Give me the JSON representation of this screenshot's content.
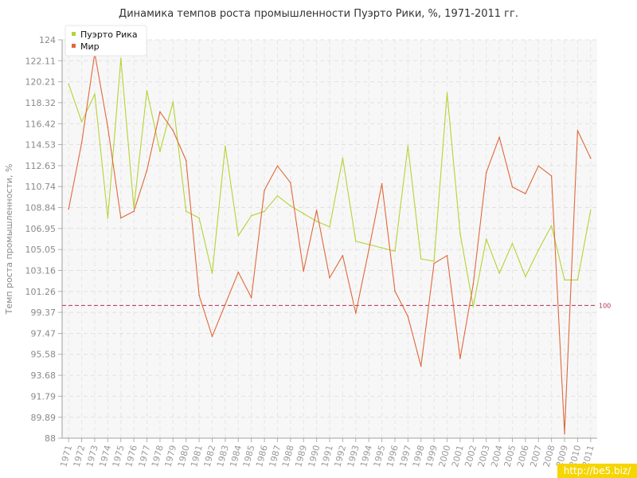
{
  "chart_data": {
    "type": "line",
    "title": "Динамика темпов роста промышленности Пуэрто Рики, %, 1971-2011 гг.",
    "ylabel": "Темп роста промышленности, %",
    "xlabel": "",
    "ylim": [
      88,
      124
    ],
    "y_ticks": [
      "124",
      "122.11",
      "120.21",
      "118.32",
      "116.42",
      "114.53",
      "112.63",
      "110.74",
      "108.84",
      "106.95",
      "105.05",
      "103.16",
      "101.26",
      "99.37",
      "97.47",
      "95.58",
      "93.68",
      "91.79",
      "89.89",
      "88"
    ],
    "categories": [
      "1971",
      "1972",
      "1973",
      "1974",
      "1975",
      "1976",
      "1977",
      "1978",
      "1979",
      "1980",
      "1981",
      "1982",
      "1983",
      "1984",
      "1985",
      "1986",
      "1987",
      "1988",
      "1989",
      "1990",
      "1991",
      "1992",
      "1993",
      "1994",
      "1995",
      "1996",
      "1997",
      "1998",
      "1999",
      "2000",
      "2001",
      "2002",
      "2003",
      "2004",
      "2005",
      "2006",
      "2007",
      "2008",
      "2009",
      "2010",
      "2011"
    ],
    "series": [
      {
        "name": "Пуэрто Рика",
        "color": "#b5d334",
        "values": [
          120.0,
          116.6,
          119.1,
          107.9,
          122.3,
          108.8,
          119.4,
          113.9,
          118.4,
          108.5,
          107.9,
          102.9,
          114.4,
          106.3,
          108.1,
          108.5,
          109.9,
          109.0,
          108.3,
          107.6,
          107.1,
          113.3,
          105.8,
          105.5,
          105.2,
          104.9,
          114.4,
          104.2,
          104.0,
          119.2,
          106.5,
          99.9,
          106.0,
          102.9,
          105.6,
          102.6,
          105.0,
          107.2,
          102.3,
          102.3,
          108.6
        ],
        "annotation": "Пуэрто Рика"
      },
      {
        "name": "Мир",
        "color": "#e0683a",
        "values": [
          108.7,
          114.7,
          122.8,
          116.1,
          107.9,
          108.5,
          112.2,
          117.5,
          115.8,
          113.1,
          100.9,
          97.2,
          100.1,
          103.0,
          100.7,
          110.4,
          112.6,
          111.1,
          103.1,
          108.6,
          102.5,
          104.5,
          99.3,
          105.0,
          111.0,
          101.3,
          99.0,
          94.5,
          103.8,
          104.5,
          95.2,
          101.9,
          112.0,
          115.2,
          110.7,
          110.1,
          112.6,
          111.7,
          88.4,
          115.8,
          113.3
        ]
      }
    ],
    "reference_line": {
      "value": 100,
      "label": "100",
      "color": "#b03050"
    },
    "grid": true,
    "legend": "top-left"
  },
  "watermark": "http://be5.biz/"
}
